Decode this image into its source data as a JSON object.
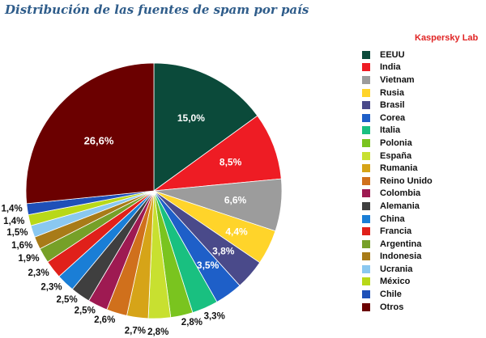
{
  "chart_data": {
    "type": "pie",
    "title": "Distribución de las fuentes de spam por país",
    "source": "Kaspersky Lab",
    "legend_position": "right",
    "start_angle_deg": 0,
    "direction": "clockwise",
    "categories": [
      "EEUU",
      "India",
      "Vietnam",
      "Rusia",
      "Brasil",
      "Corea",
      "Italia",
      "Polonia",
      "España",
      "Rumania",
      "Reino Unido",
      "Colombia",
      "Alemania",
      "China",
      "Francia",
      "Argentina",
      "Indonesia",
      "Ucrania",
      "México",
      "Chile",
      "Otros"
    ],
    "values": [
      15.0,
      8.5,
      6.6,
      4.4,
      3.8,
      3.5,
      3.3,
      2.8,
      2.8,
      2.7,
      2.6,
      2.5,
      2.5,
      2.3,
      2.3,
      1.9,
      1.6,
      1.5,
      1.4,
      1.4,
      26.6
    ],
    "value_labels": [
      "15,0%",
      "8,5%",
      "6,6%",
      "4,4%",
      "3,8%",
      "3,5%",
      "3,3%",
      "2,8%",
      "2,8%",
      "2,7%",
      "2,6%",
      "2,5%",
      "2,5%",
      "2,3%",
      "2,3%",
      "1,9%",
      "1,6%",
      "1,5%",
      "1,4%",
      "1,4%",
      "26,6%"
    ],
    "colors": [
      "#0b4a3a",
      "#ee1c24",
      "#9c9c9c",
      "#ffd42a",
      "#4a4a8a",
      "#1e5fc8",
      "#19c080",
      "#7ac41f",
      "#c8e030",
      "#d6a418",
      "#d0701c",
      "#9e1a52",
      "#3f3f3f",
      "#1a7ed6",
      "#e0201a",
      "#76a028",
      "#a87b18",
      "#8ac8f0",
      "#b8d818",
      "#1e50b8",
      "#6b0000"
    ],
    "label_placement": [
      "inside",
      "inside",
      "inside",
      "inside",
      "inside",
      "inside",
      "outside",
      "outside",
      "outside",
      "outside",
      "outside",
      "outside",
      "outside",
      "outside",
      "outside",
      "outside",
      "outside",
      "outside",
      "outside",
      "outside",
      "inside"
    ]
  }
}
